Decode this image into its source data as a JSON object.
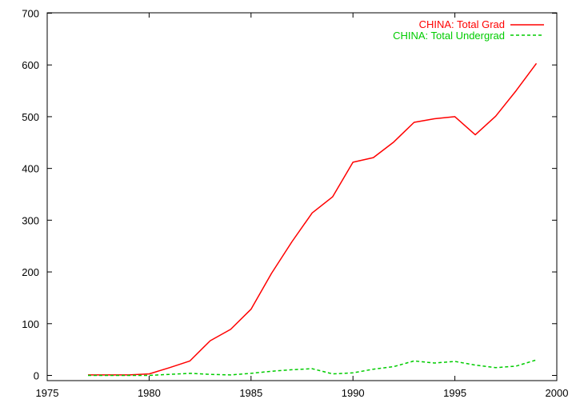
{
  "chart_data": {
    "type": "line",
    "title": "",
    "xlabel": "",
    "ylabel": "",
    "xlim": [
      1975,
      2000
    ],
    "ylim": [
      0,
      700
    ],
    "xticks": [
      1975,
      1980,
      1985,
      1990,
      1995,
      2000
    ],
    "yticks": [
      0,
      100,
      200,
      300,
      400,
      500,
      600,
      700
    ],
    "grid": false,
    "legend_position": "top-right",
    "series": [
      {
        "name": "CHINA: Total Grad",
        "color": "#ff0000",
        "dash": "solid",
        "x": [
          1977,
          1978,
          1979,
          1980,
          1981,
          1982,
          1983,
          1984,
          1985,
          1986,
          1987,
          1988,
          1989,
          1990,
          1991,
          1992,
          1993,
          1994,
          1995,
          1996,
          1997,
          1998,
          1999
        ],
        "y": [
          1,
          1,
          1,
          3,
          15,
          28,
          67,
          89,
          128,
          197,
          258,
          314,
          345,
          412,
          421,
          451,
          489,
          496,
          500,
          465,
          501,
          550,
          603
        ]
      },
      {
        "name": "CHINA: Total Undergrad",
        "color": "#00cc00",
        "dash": "dashed",
        "x": [
          1977,
          1978,
          1979,
          1980,
          1981,
          1982,
          1983,
          1984,
          1985,
          1986,
          1987,
          1988,
          1989,
          1990,
          1991,
          1992,
          1993,
          1994,
          1995,
          1996,
          1997,
          1998,
          1999
        ],
        "y": [
          0,
          0,
          0,
          0,
          2,
          4,
          2,
          1,
          4,
          8,
          11,
          13,
          3,
          5,
          12,
          17,
          28,
          24,
          27,
          20,
          15,
          18,
          30
        ]
      }
    ]
  }
}
